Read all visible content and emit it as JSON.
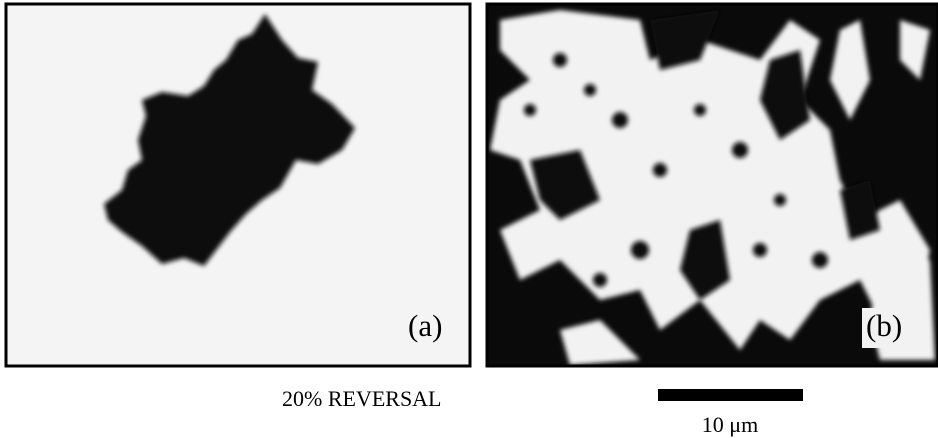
{
  "panels": [
    {
      "label": "(a)"
    },
    {
      "label": "(b)"
    }
  ],
  "caption": "20% REVERSAL",
  "scale_bar": {
    "label": "10 μm"
  }
}
